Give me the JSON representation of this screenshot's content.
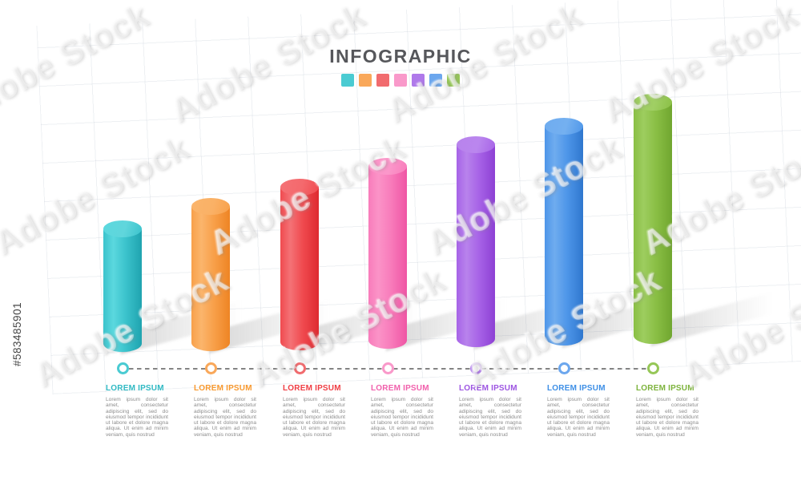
{
  "title": "INFOGRAPHIC",
  "watermark": {
    "brand": "Adobe Stock",
    "stock_id": "#583485901"
  },
  "text_colors": {
    "title": "#56575B",
    "description": "#8D8D8D"
  },
  "timeline": {
    "dash_color": "#848484"
  },
  "steps": [
    {
      "label": "LOREM IPSUM",
      "description": "Lorem ipsum dolor sit amet, consectetur adipiscing elit, sed do eiusmod tempor incididunt ut labore et dolore magna aliqua. Ut enim ad minim veniam, quis nostrud",
      "colors": {
        "swatch": "#4ACBD2",
        "base": "#3BC3CC",
        "light": "#5BD8DE",
        "dark": "#1FA3AF",
        "top": "#60D6DC",
        "label": "#2FB9C3"
      }
    },
    {
      "label": "LOREM IPSUM",
      "description": "Lorem ipsum dolor sit amet, consectetur adipiscing elit, sed do eiusmod tempor incididunt ut labore et dolore magna aliqua. Ut enim ad minim veniam, quis nostrud",
      "colors": {
        "swatch": "#F9A85A",
        "base": "#F8A04A",
        "light": "#FBB56C",
        "dark": "#EE8424",
        "top": "#FAB166",
        "label": "#F8992F"
      }
    },
    {
      "label": "LOREM IPSUM",
      "description": "Lorem ipsum dolor sit amet, consectetur adipiscing elit, sed do eiusmod tempor incididunt ut labore et dolore magna aliqua. Ut enim ad minim veniam, quis nostrud",
      "colors": {
        "swatch": "#F16B6E",
        "base": "#F04A4F",
        "light": "#F47276",
        "dark": "#DE2A30",
        "top": "#F4696D",
        "label": "#EF3E44"
      }
    },
    {
      "label": "LOREM IPSUM",
      "description": "Lorem ipsum dolor sit amet, consectetur adipiscing elit, sed do eiusmod tempor incididunt ut labore et dolore magna aliqua. Ut enim ad minim veniam, quis nostrud",
      "colors": {
        "swatch": "#F999CA",
        "base": "#F87CBB",
        "light": "#FB93C7",
        "dark": "#EF55A4",
        "top": "#FB97CA",
        "label": "#F160AC"
      }
    },
    {
      "label": "LOREM IPSUM",
      "description": "Lorem ipsum dolor sit amet, consectetur adipiscing elit, sed do eiusmod tempor incididunt ut labore et dolore magna aliqua. Ut enim ad minim veniam, quis nostrud",
      "colors": {
        "swatch": "#AF79EA",
        "base": "#A763E7",
        "light": "#B883EC",
        "dark": "#8D40D4",
        "top": "#BA86EE",
        "label": "#9D55E2"
      }
    },
    {
      "label": "LOREM IPSUM",
      "description": "Lorem ipsum dolor sit amet, consectetur adipiscing elit, sed do eiusmod tempor incididunt ut labore et dolore magna aliqua. Ut enim ad minim veniam, quis nostrud",
      "colors": {
        "swatch": "#6CA7EE",
        "base": "#4E96E9",
        "light": "#6FACEF",
        "dark": "#2F77CE",
        "top": "#74B0F0",
        "label": "#3E8FE6"
      }
    },
    {
      "label": "LOREM IPSUM",
      "description": "Lorem ipsum dolor sit amet, consectetur adipiscing elit, sed do eiusmod tempor incididunt ut labore et dolore magna aliqua. Ut enim ad minim veniam, quis nostrud",
      "colors": {
        "swatch": "#96C757",
        "base": "#8ABF45",
        "light": "#9DCD5F",
        "dark": "#70A62F",
        "top": "#A0CF64",
        "label": "#7DB33C"
      }
    }
  ],
  "chart_data": {
    "type": "bar",
    "title": "INFOGRAPHIC",
    "categories": [
      "LOREM IPSUM",
      "LOREM IPSUM",
      "LOREM IPSUM",
      "LOREM IPSUM",
      "LOREM IPSUM",
      "LOREM IPSUM",
      "LOREM IPSUM"
    ],
    "values": [
      153,
      180,
      203,
      227,
      252,
      273,
      301
    ],
    "value_scale": "relative cylinder heights in px (no numeric axis shown)",
    "xlabel": "",
    "ylabel": "",
    "ylim": [
      0,
      320
    ],
    "bar_shape": "3d-cylinder",
    "grid": "faint background grid",
    "legend_position": "top-center color swatches",
    "colors": [
      "#4ACBD2",
      "#F9A85A",
      "#F16B6E",
      "#F999CA",
      "#AF79EA",
      "#6CA7EE",
      "#96C757"
    ]
  }
}
